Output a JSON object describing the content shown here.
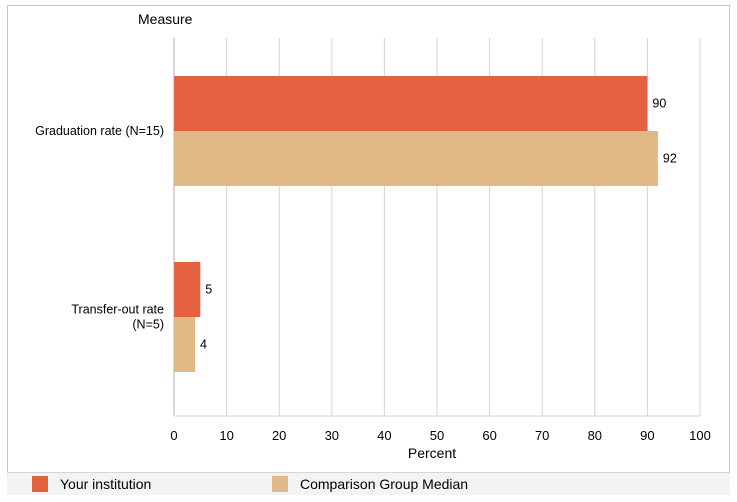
{
  "chart_data": {
    "type": "bar",
    "orientation": "horizontal",
    "category_axis_title": "Measure",
    "xlabel": "Percent",
    "xlim": [
      0,
      100
    ],
    "xticks": [
      0,
      10,
      20,
      30,
      40,
      50,
      60,
      70,
      80,
      90,
      100
    ],
    "grid": true,
    "legend_position": "bottom",
    "categories": [
      [
        "Graduation rate (N=15)"
      ],
      [
        "Transfer-out rate",
        "(N=5)"
      ]
    ],
    "series": [
      {
        "name": "Your institution",
        "color": "#e4623f",
        "values": [
          90,
          5
        ]
      },
      {
        "name": "Comparison Group Median",
        "color": "#e0b986",
        "values": [
          92,
          4
        ]
      }
    ]
  }
}
